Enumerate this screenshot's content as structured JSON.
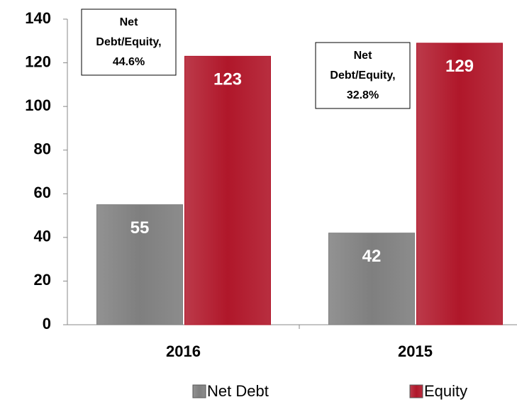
{
  "chart_data": {
    "type": "bar",
    "categories": [
      "2016",
      "2015"
    ],
    "series": [
      {
        "name": "Net Debt",
        "color": "#7f7f7f",
        "values": [
          55,
          42
        ]
      },
      {
        "name": "Equity",
        "color": "#b0172a",
        "values": [
          123,
          129
        ]
      }
    ],
    "ylim": [
      0,
      140
    ],
    "yticks": [
      0,
      20,
      40,
      60,
      80,
      100,
      120,
      140
    ],
    "annotations": [
      {
        "lines": [
          "Net",
          "Debt/Equity,",
          "44.6%"
        ]
      },
      {
        "lines": [
          "Net",
          "Debt/Equity,",
          "32.8%"
        ]
      }
    ],
    "legend": "bottom"
  }
}
